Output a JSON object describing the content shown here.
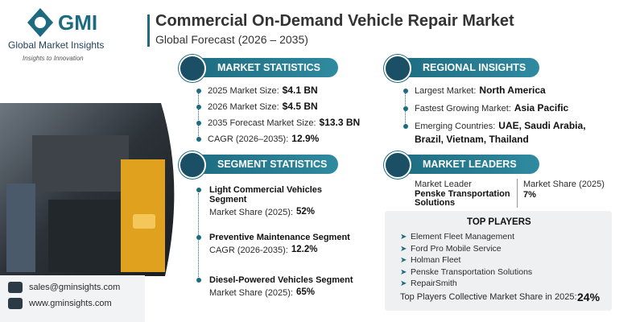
{
  "logo": {
    "name": "GMI",
    "text": "Global Market Insights",
    "tagline": "Insights to Innovation"
  },
  "header": {
    "title": "Commercial On-Demand Vehicle Repair Market",
    "subtitle": "Global Forecast (2026 – 2035)"
  },
  "market_statistics": {
    "heading": "MARKET STATISTICS",
    "items": [
      {
        "label": "2025 Market Size:",
        "value": "$4.1 BN"
      },
      {
        "label": "2026 Market Size:",
        "value": "$4.5 BN"
      },
      {
        "label": "2035 Forecast Market Size:",
        "value": "$13.3 BN"
      },
      {
        "label": "CAGR (2026–2035):",
        "value": "12.9%"
      }
    ]
  },
  "regional_insights": {
    "heading": "REGIONAL INSIGHTS",
    "items": [
      {
        "label": "Largest Market:",
        "value": "North America"
      },
      {
        "label": "Fastest Growing Market:",
        "value": "Asia Pacific"
      },
      {
        "label": "Emerging Countries:",
        "value": "UAE, Saudi Arabia,",
        "value2": "Brazil, Vietnam, Thailand"
      }
    ]
  },
  "segment_statistics": {
    "heading": "SEGMENT STATISTICS",
    "items": [
      {
        "segment": [
          "Light Commercial Vehicles",
          "Segment"
        ],
        "label": "Market Share (2025):",
        "value": "52%"
      },
      {
        "segment": [
          "Preventive Maintenance Segment"
        ],
        "label": "CAGR (2026-2035):",
        "value": "12.2%"
      },
      {
        "segment": [
          "Diesel-Powered Vehicles  Segment"
        ],
        "label": "Market Share (2025):",
        "value": "65%"
      }
    ]
  },
  "market_leaders": {
    "heading": "MARKET LEADERS",
    "leader_label": "Market Leader",
    "leader": [
      "Penske Transportation",
      "Solutions"
    ],
    "share_label": "Market Share (2025)",
    "share": "7%"
  },
  "top_players": {
    "heading": "TOP PLAYERS",
    "players": [
      "Element Fleet Management",
      "Ford Pro Mobile Service",
      "Holman Fleet",
      "Penske Transportation Solutions",
      "RepairSmith"
    ],
    "footer_label": "Top Players Collective Market Share in 2025:",
    "footer_value": "24%"
  },
  "contact": {
    "email": "sales@gminsights.com",
    "website": "www.gminsights.com"
  }
}
